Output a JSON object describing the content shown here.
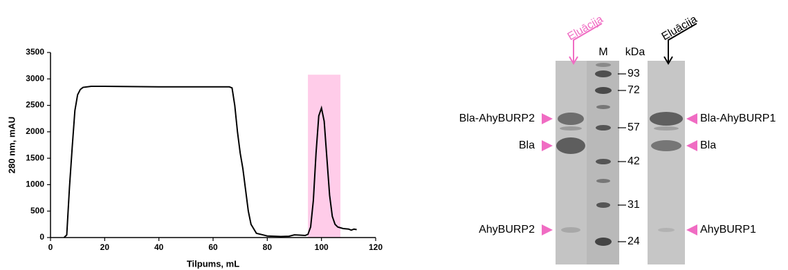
{
  "chart_data": {
    "type": "line",
    "x_label": "Tilpums, mL",
    "y_label": "280 nm, mAU",
    "x": [
      5,
      6,
      7,
      8,
      9,
      10,
      11,
      12,
      15,
      20,
      30,
      40,
      50,
      60,
      66,
      67,
      68,
      69,
      70,
      71,
      72,
      73,
      74,
      76,
      80,
      85,
      88,
      90,
      92,
      94,
      95,
      96,
      97,
      98,
      99,
      100,
      101,
      102,
      103,
      104,
      105,
      106,
      108,
      110,
      111,
      112,
      113
    ],
    "series": [
      {
        "color": "#000000",
        "values": [
          0,
          50,
          950,
          1700,
          2400,
          2700,
          2800,
          2840,
          2860,
          2860,
          2855,
          2850,
          2850,
          2850,
          2850,
          2830,
          2500,
          2000,
          1600,
          1300,
          900,
          500,
          250,
          80,
          30,
          20,
          25,
          50,
          45,
          40,
          60,
          200,
          700,
          1600,
          2300,
          2450,
          2200,
          1500,
          800,
          400,
          250,
          200,
          170,
          160,
          140,
          160,
          150
        ]
      }
    ],
    "xlim": [
      0,
      120
    ],
    "xticks": [
      0,
      20,
      40,
      60,
      80,
      100,
      120
    ],
    "ylim": [
      0,
      3500
    ],
    "yticks": [
      0,
      500,
      1000,
      1500,
      2000,
      2500,
      3000,
      3500
    ],
    "shaded_region": {
      "xlim": [
        95,
        107
      ],
      "ylim": [
        0,
        3080
      ],
      "color": "#ffcce9"
    }
  },
  "gel": {
    "elution_left": "Eluācija",
    "elution_right": "Eluācija",
    "marker_lane": "M",
    "unit": "kDa",
    "marker_sizes": [
      93,
      72,
      57,
      42,
      31,
      24
    ],
    "left_labels": [
      "Bla-AhyBURP2",
      "Bla",
      "AhyBURP2"
    ],
    "right_labels": [
      "Bla-AhyBURP1",
      "Bla",
      "AhyBURP1"
    ],
    "accent_color": "#f06cc3"
  }
}
